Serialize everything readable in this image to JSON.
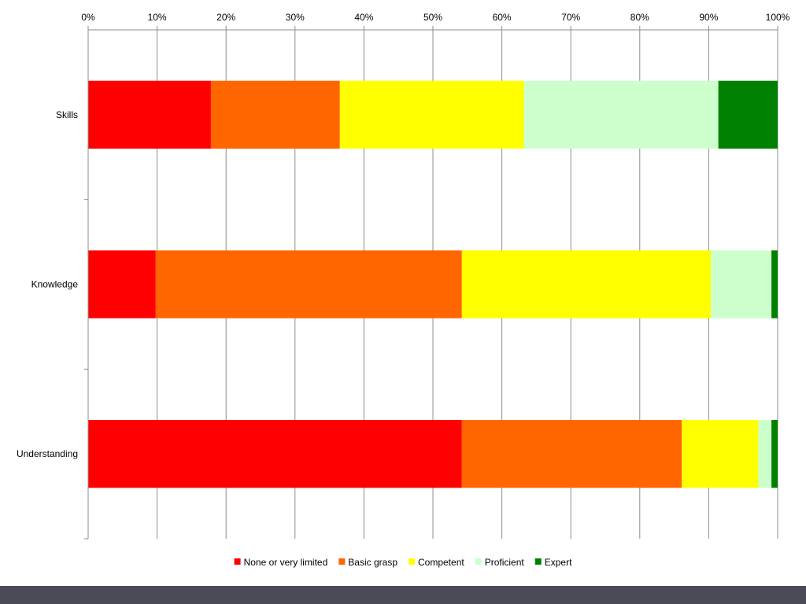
{
  "chart_data": {
    "type": "bar",
    "orientation": "horizontal",
    "stacked": "percent",
    "title": "",
    "xlabel": "",
    "ylabel": "",
    "xlim": [
      0,
      100
    ],
    "x_ticks": [
      "0%",
      "10%",
      "20%",
      "30%",
      "40%",
      "50%",
      "60%",
      "70%",
      "80%",
      "90%",
      "100%"
    ],
    "x_axis_position": "top",
    "grid": "vertical",
    "legend_position": "bottom",
    "categories": [
      "Skills",
      "Knowledge",
      "Understanding"
    ],
    "series": [
      {
        "name": "None or very limited",
        "color": "#ff0000",
        "values": [
          17.8,
          9.8,
          54.2
        ]
      },
      {
        "name": "Basic grasp",
        "color": "#ff6600",
        "values": [
          18.7,
          44.4,
          31.9
        ]
      },
      {
        "name": "Competent",
        "color": "#ffff00",
        "values": [
          26.7,
          36.1,
          11.1
        ]
      },
      {
        "name": "Proficient",
        "color": "#ccffcc",
        "values": [
          28.2,
          8.8,
          1.9
        ]
      },
      {
        "name": "Expert",
        "color": "#008000",
        "values": [
          8.6,
          0.9,
          0.9
        ]
      }
    ]
  }
}
